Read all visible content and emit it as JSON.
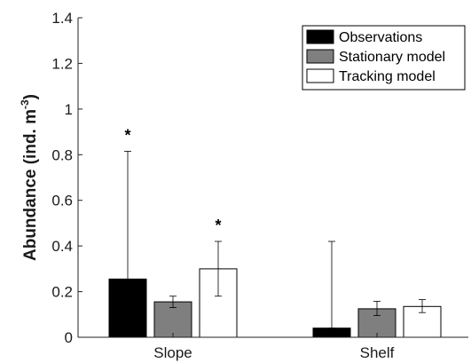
{
  "chart_data": {
    "type": "bar",
    "categories": [
      "Slope",
      "Shelf"
    ],
    "ylabel_main": "Abundance (ind. m",
    "ylabel_sup": "-3",
    "ylabel_close": ")",
    "ylim": [
      0,
      1.4
    ],
    "yticks": [
      0,
      0.2,
      0.4,
      0.6,
      0.8,
      1,
      1.2,
      1.4
    ],
    "ytick_labels": [
      "0",
      "0.2",
      "0.4",
      "0.6",
      "0.8",
      "1",
      "1.2",
      "1.4"
    ],
    "legend_position": "top-right",
    "grid": false,
    "series": [
      {
        "name": "Observations",
        "color": "#000000",
        "values": [
          0.255,
          0.04
        ],
        "err_low": [
          0.255,
          0.04
        ],
        "err_high": [
          0.815,
          0.42
        ],
        "significance": [
          "*",
          ""
        ]
      },
      {
        "name": "Stationary model",
        "color": "#7f7f7f",
        "values": [
          0.155,
          0.125
        ],
        "err_low": [
          0.13,
          0.095
        ],
        "err_high": [
          0.18,
          0.158
        ],
        "significance": [
          "",
          ""
        ]
      },
      {
        "name": "Tracking model",
        "color": "#ffffff",
        "values": [
          0.3,
          0.135
        ],
        "err_low": [
          0.18,
          0.108
        ],
        "err_high": [
          0.42,
          0.165
        ],
        "significance": [
          "*",
          ""
        ]
      }
    ]
  }
}
